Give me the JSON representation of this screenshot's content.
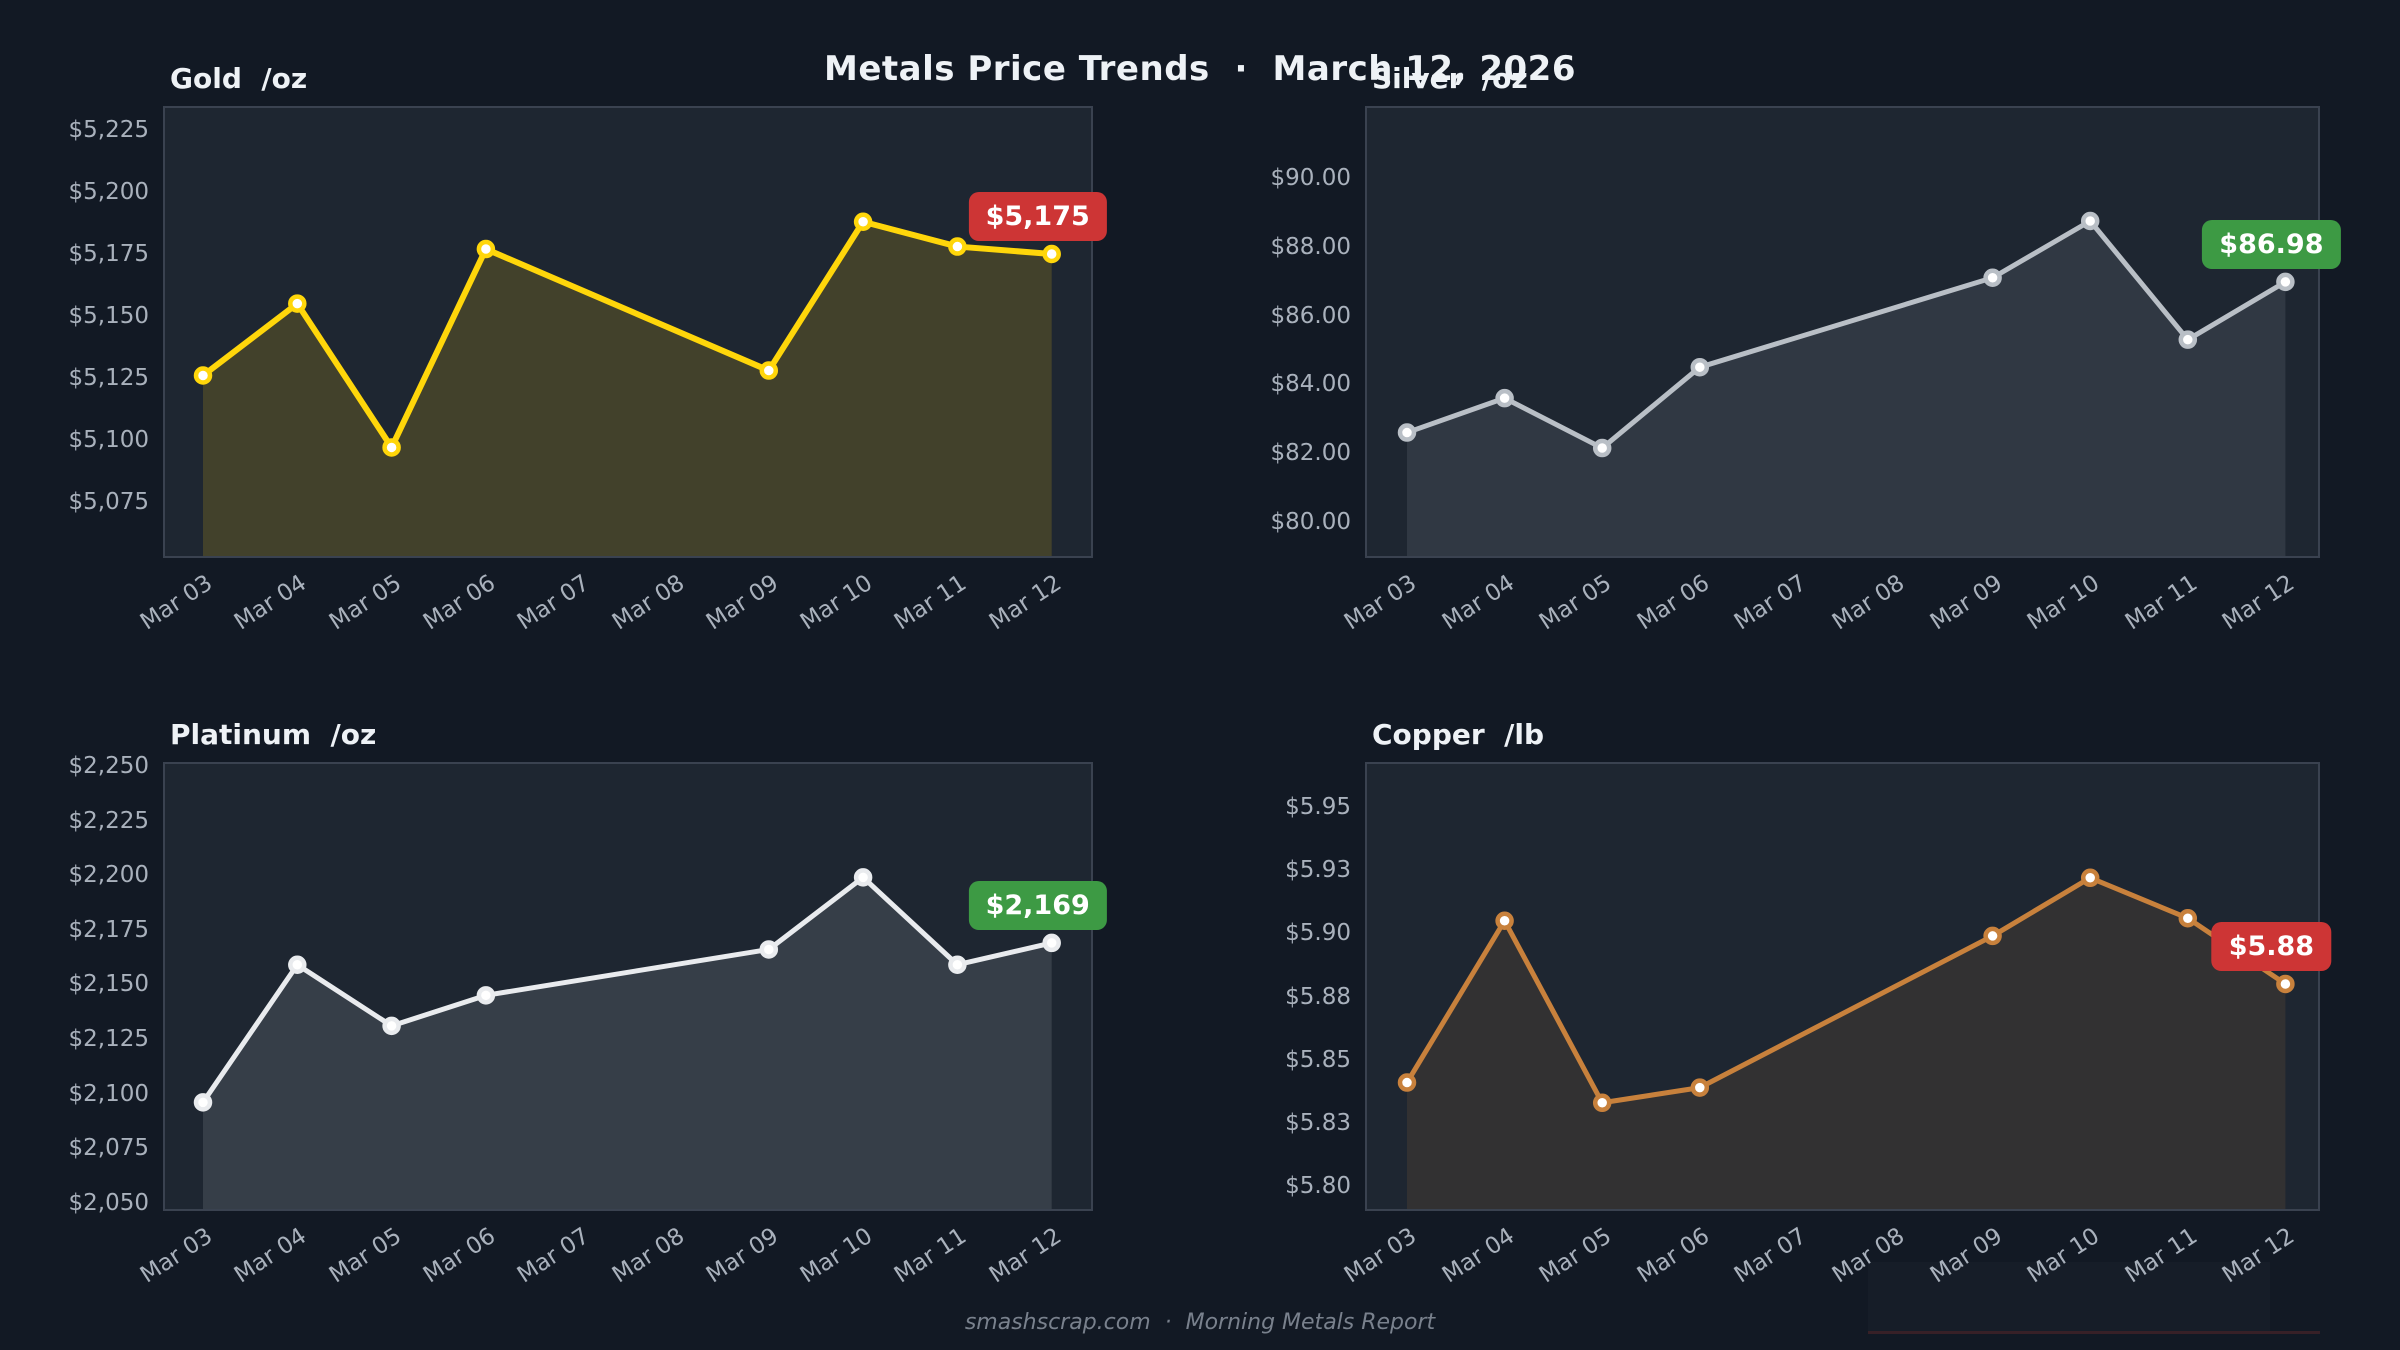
{
  "page": {
    "title": "Metals Price Trends  ·  March 12, 2026",
    "footer": "smashscrap.com  ·  Morning Metals Report",
    "background": "#121924",
    "panel_background": "#1e2631",
    "border_color": "#3a4250",
    "tick_label_color": "#a9b1bc",
    "badge_up_color": "#3d9a44",
    "badge_down_color": "#cd3535"
  },
  "chart_data": [
    {
      "type": "line",
      "title": "Gold  /oz",
      "metal": "Gold",
      "unit": "/oz",
      "line_color": "#ffd60a",
      "badge": {
        "text": "$5,175",
        "color": "#cd3535"
      },
      "x_axis_labels": [
        "Mar 03",
        "Mar 04",
        "Mar 05",
        "Mar 06",
        "Mar 07",
        "Mar 08",
        "Mar 09",
        "Mar 10",
        "Mar 11",
        "Mar 12"
      ],
      "x": [
        "Mar 03",
        "Mar 04",
        "Mar 05",
        "Mar 06",
        "Mar 09",
        "Mar 10",
        "Mar 11",
        "Mar 12"
      ],
      "values": [
        5126,
        5155,
        5097,
        5177,
        5128,
        5188,
        5178,
        5175
      ],
      "y_ticks": [
        {
          "label": "$5,225",
          "value": 5225
        },
        {
          "label": "$5,200",
          "value": 5200
        },
        {
          "label": "$5,175",
          "value": 5175
        },
        {
          "label": "$5,150",
          "value": 5150
        },
        {
          "label": "$5,125",
          "value": 5125
        },
        {
          "label": "$5,100",
          "value": 5100
        },
        {
          "label": "$5,075",
          "value": 5075
        }
      ],
      "ylim": [
        5075,
        5225
      ],
      "grid": false,
      "legend": "none"
    },
    {
      "type": "line",
      "title": "Silver  /oz",
      "metal": "Silver",
      "unit": "/oz",
      "line_color": "#b9bfc6",
      "badge": {
        "text": "$86.98",
        "color": "#3d9a44"
      },
      "x_axis_labels": [
        "Mar 03",
        "Mar 04",
        "Mar 05",
        "Mar 06",
        "Mar 07",
        "Mar 08",
        "Mar 09",
        "Mar 10",
        "Mar 11",
        "Mar 12"
      ],
      "x": [
        "Mar 03",
        "Mar 04",
        "Mar 05",
        "Mar 06",
        "Mar 09",
        "Mar 10",
        "Mar 11",
        "Mar 12"
      ],
      "values": [
        82.6,
        83.6,
        82.15,
        84.5,
        87.1,
        88.75,
        85.3,
        86.98
      ],
      "y_ticks": [
        {
          "label": "$90.00",
          "value": 90
        },
        {
          "label": "$88.00",
          "value": 88
        },
        {
          "label": "$86.00",
          "value": 86
        },
        {
          "label": "$84.00",
          "value": 84
        },
        {
          "label": "$82.00",
          "value": 82
        },
        {
          "label": "$80.00",
          "value": 80
        }
      ],
      "ylim": [
        80,
        90
      ],
      "grid": false,
      "legend": "none"
    },
    {
      "type": "line",
      "title": "Platinum  /oz",
      "metal": "Platinum",
      "unit": "/oz",
      "line_color": "#e9ebee",
      "badge": {
        "text": "$2,169",
        "color": "#3d9a44"
      },
      "x_axis_labels": [
        "Mar 03",
        "Mar 04",
        "Mar 05",
        "Mar 06",
        "Mar 07",
        "Mar 08",
        "Mar 09",
        "Mar 10",
        "Mar 11",
        "Mar 12"
      ],
      "x": [
        "Mar 03",
        "Mar 04",
        "Mar 05",
        "Mar 06",
        "Mar 09",
        "Mar 10",
        "Mar 11",
        "Mar 12"
      ],
      "values": [
        2096,
        2159,
        2131,
        2145,
        2166,
        2199,
        2159,
        2169
      ],
      "y_ticks": [
        {
          "label": "$2,250",
          "value": 2250
        },
        {
          "label": "$2,225",
          "value": 2225
        },
        {
          "label": "$2,200",
          "value": 2200
        },
        {
          "label": "$2,175",
          "value": 2175
        },
        {
          "label": "$2,150",
          "value": 2150
        },
        {
          "label": "$2,125",
          "value": 2125
        },
        {
          "label": "$2,100",
          "value": 2100
        },
        {
          "label": "$2,075",
          "value": 2075
        },
        {
          "label": "$2,050",
          "value": 2050
        }
      ],
      "ylim": [
        2050,
        2250
      ],
      "grid": false,
      "legend": "none"
    },
    {
      "type": "line",
      "title": "Copper  /lb",
      "metal": "Copper",
      "unit": "/lb",
      "line_color": "#c8813c",
      "badge": {
        "text": "$5.88",
        "color": "#cd3535"
      },
      "x_axis_labels": [
        "Mar 03",
        "Mar 04",
        "Mar 05",
        "Mar 06",
        "Mar 07",
        "Mar 08",
        "Mar 09",
        "Mar 10",
        "Mar 11",
        "Mar 12"
      ],
      "x": [
        "Mar 03",
        "Mar 04",
        "Mar 05",
        "Mar 06",
        "Mar 09",
        "Mar 10",
        "Mar 11",
        "Mar 12"
      ],
      "values": [
        5.841,
        5.905,
        5.833,
        5.839,
        5.899,
        5.922,
        5.906,
        5.88
      ],
      "y_ticks": [
        {
          "label": "$5.95",
          "value": 5.95
        },
        {
          "label": "$5.93",
          "value": 5.925
        },
        {
          "label": "$5.90",
          "value": 5.9
        },
        {
          "label": "$5.88",
          "value": 5.875
        },
        {
          "label": "$5.85",
          "value": 5.85
        },
        {
          "label": "$5.83",
          "value": 5.825
        },
        {
          "label": "$5.80",
          "value": 5.8
        }
      ],
      "ylim": [
        5.8,
        5.95
      ],
      "grid": false,
      "legend": "none"
    }
  ]
}
